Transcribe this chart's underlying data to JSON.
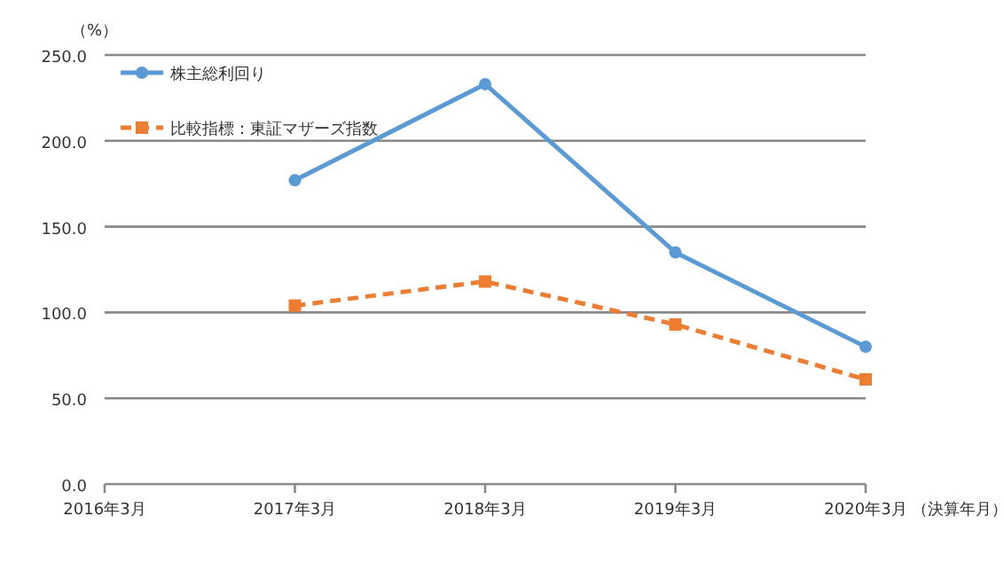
{
  "chart_data": {
    "type": "line",
    "ylabel": "（%）",
    "xlabel": "（決算年月）",
    "categories": [
      "2016年3月",
      "2017年3月",
      "2018年3月",
      "2019年3月",
      "2020年3月"
    ],
    "series": [
      {
        "name": "株主総利回り",
        "color": "#5b9bd5",
        "values": [
          null,
          177,
          233,
          135,
          80
        ],
        "marker": "circle",
        "line_style": "solid"
      },
      {
        "name": "比較指標：東証マザーズ指数",
        "color": "#ed7d31",
        "values": [
          null,
          104,
          118,
          93,
          61
        ],
        "marker": "square",
        "line_style": "dashed"
      }
    ],
    "ylim": [
      0,
      250
    ],
    "yticks": [
      {
        "value": 0,
        "label": "0.0"
      },
      {
        "value": 50,
        "label": "50.0"
      },
      {
        "value": 100,
        "label": "100.0"
      },
      {
        "value": 150,
        "label": "150.0"
      },
      {
        "value": 200,
        "label": "200.0"
      },
      {
        "value": 250,
        "label": "250.0"
      }
    ],
    "grid": "y",
    "legend": "top left"
  }
}
